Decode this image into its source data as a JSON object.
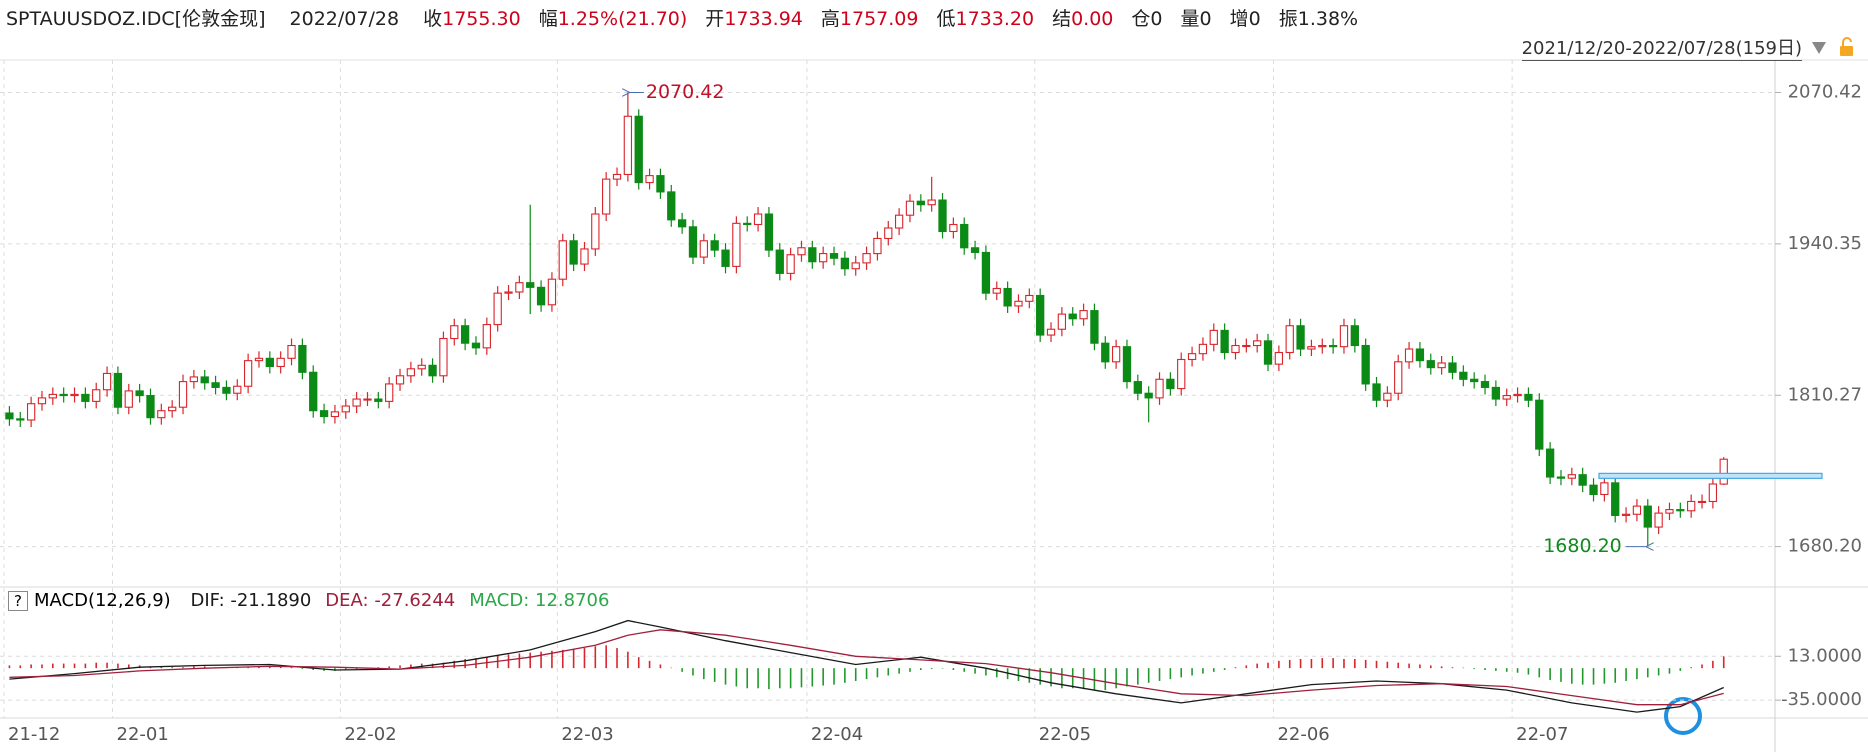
{
  "header": {
    "symbol": "SPTAUUSDOZ.IDC[伦敦金现]",
    "date": "2022/07/28",
    "fields": [
      {
        "label": "收",
        "value": "1755.30",
        "color": "#d0021b"
      },
      {
        "label": "幅",
        "value": "1.25%(21.70)",
        "color": "#d0021b"
      },
      {
        "label": "开",
        "value": "1733.94",
        "color": "#d0021b"
      },
      {
        "label": "高",
        "value": "1757.09",
        "color": "#d0021b"
      },
      {
        "label": "低",
        "value": "1733.20",
        "color": "#d0021b"
      },
      {
        "label": "结",
        "value": "0.00",
        "color": "#d0021b"
      },
      {
        "label": "仓",
        "value": "0",
        "color": "#222222"
      },
      {
        "label": "量",
        "value": "0",
        "color": "#222222"
      },
      {
        "label": "增",
        "value": "0",
        "color": "#222222"
      },
      {
        "label": "振",
        "value": "1.38%",
        "color": "#222222"
      }
    ],
    "range": "2021/12/20-2022/07/28(159日)"
  },
  "chart_data": [
    {
      "type": "candlestick",
      "up_color": "#d9252c",
      "down_color": "#0c8a16",
      "grid": true,
      "ylim": [
        1645.5,
        2088.9
      ],
      "yticks": [
        {
          "value": 1680.2,
          "label": "1680.20"
        },
        1810.27,
        1940.35,
        2070.42
      ],
      "xticks": [
        {
          "value": 0,
          "label": "21-12"
        },
        {
          "value": 10,
          "label": "22-01"
        },
        {
          "value": 31,
          "label": "22-02"
        },
        {
          "value": 51,
          "label": "22-03"
        },
        {
          "value": 74,
          "label": "22-04"
        },
        {
          "value": 95,
          "label": "22-05"
        },
        {
          "value": 117,
          "label": "22-06"
        },
        {
          "value": 139,
          "label": "22-07"
        }
      ],
      "open": [
        1795,
        1790,
        1789,
        1803,
        1808,
        1811,
        1810,
        1811,
        1805,
        1815,
        1829,
        1800,
        1814,
        1810,
        1791,
        1797,
        1800,
        1822,
        1826,
        1821,
        1817,
        1812,
        1818,
        1840,
        1842,
        1835,
        1842,
        1853,
        1830,
        1797,
        1792,
        1796,
        1801,
        1807,
        1807,
        1805,
        1820,
        1827,
        1833,
        1836,
        1827,
        1859,
        1870,
        1855,
        1851,
        1871,
        1898,
        1899,
        1907,
        1903,
        1888,
        1910,
        1943,
        1923,
        1936,
        1966,
        1996,
        2000,
        2050,
        1993,
        1999,
        1985,
        1961,
        1955,
        1929,
        1943,
        1935,
        1921,
        1958,
        1957,
        1966,
        1935,
        1915,
        1931,
        1937,
        1925,
        1932,
        1928,
        1919,
        1924,
        1932,
        1945,
        1954,
        1965,
        1977,
        1974,
        1978,
        1951,
        1957,
        1937,
        1933,
        1898,
        1902,
        1887,
        1891,
        1896,
        1862,
        1867,
        1880,
        1876,
        1883,
        1855,
        1839,
        1852,
        1822,
        1812,
        1808,
        1824,
        1816,
        1841,
        1846,
        1854,
        1866,
        1847,
        1853,
        1853,
        1857,
        1837,
        1847,
        1870,
        1850,
        1852,
        1853,
        1852,
        1870,
        1853,
        1820,
        1806,
        1812,
        1839,
        1850,
        1840,
        1834,
        1838,
        1830,
        1824,
        1822,
        1817,
        1807,
        1810,
        1811,
        1806,
        1764,
        1740,
        1739,
        1742,
        1733,
        1725,
        1735,
        1707,
        1708,
        1715,
        1697,
        1709,
        1712,
        1711,
        1719,
        1719,
        1733.94
      ],
      "high": [
        1801,
        1796,
        1809,
        1814,
        1817,
        1817,
        1817,
        1817,
        1821,
        1835,
        1835,
        1820,
        1820,
        1816,
        1803,
        1806,
        1828,
        1832,
        1832,
        1827,
        1823,
        1824,
        1846,
        1848,
        1848,
        1848,
        1859,
        1859,
        1836,
        1803,
        1802,
        1807,
        1813,
        1813,
        1813,
        1826,
        1833,
        1839,
        1842,
        1842,
        1865,
        1876,
        1876,
        1861,
        1877,
        1904,
        1905,
        1913,
        1974,
        1909,
        1916,
        1949,
        1949,
        1942,
        1972,
        2002,
        2006,
        2070.42,
        2056,
        2005,
        2005,
        1991,
        1967,
        1961,
        1949,
        1949,
        1941,
        1964,
        1964,
        1972,
        1972,
        1941,
        1937,
        1943,
        1943,
        1938,
        1938,
        1934,
        1930,
        1938,
        1951,
        1960,
        1971,
        1983,
        1983,
        1998,
        1984,
        1963,
        1963,
        1943,
        1939,
        1908,
        1908,
        1897,
        1902,
        1902,
        1873,
        1886,
        1886,
        1889,
        1889,
        1861,
        1858,
        1858,
        1828,
        1818,
        1830,
        1830,
        1847,
        1852,
        1860,
        1872,
        1872,
        1859,
        1859,
        1863,
        1863,
        1853,
        1876,
        1876,
        1858,
        1859,
        1859,
        1876,
        1876,
        1859,
        1826,
        1818,
        1845,
        1856,
        1856,
        1846,
        1844,
        1844,
        1836,
        1830,
        1828,
        1823,
        1816,
        1817,
        1817,
        1812,
        1770,
        1746,
        1748,
        1748,
        1739,
        1741,
        1741,
        1714,
        1721,
        1721,
        1715,
        1718,
        1718,
        1725,
        1725,
        1740,
        1757.09
      ],
      "low": [
        1784,
        1783,
        1783,
        1797,
        1802,
        1804,
        1804,
        1799,
        1799,
        1809,
        1794,
        1794,
        1804,
        1785,
        1785,
        1791,
        1794,
        1816,
        1815,
        1811,
        1806,
        1806,
        1812,
        1834,
        1829,
        1829,
        1836,
        1824,
        1791,
        1786,
        1786,
        1790,
        1795,
        1801,
        1799,
        1799,
        1814,
        1821,
        1827,
        1821,
        1821,
        1853,
        1849,
        1845,
        1845,
        1865,
        1892,
        1893,
        1880,
        1882,
        1882,
        1904,
        1917,
        1917,
        1930,
        1960,
        1990,
        1994,
        1987,
        1987,
        1979,
        1955,
        1949,
        1923,
        1923,
        1929,
        1915,
        1915,
        1951,
        1951,
        1929,
        1909,
        1909,
        1925,
        1919,
        1919,
        1922,
        1913,
        1913,
        1918,
        1926,
        1939,
        1948,
        1959,
        1968,
        1968,
        1945,
        1945,
        1931,
        1927,
        1892,
        1892,
        1881,
        1881,
        1885,
        1856,
        1856,
        1861,
        1870,
        1870,
        1849,
        1833,
        1833,
        1816,
        1806,
        1787,
        1802,
        1810,
        1810,
        1835,
        1840,
        1848,
        1841,
        1841,
        1847,
        1847,
        1831,
        1831,
        1841,
        1844,
        1844,
        1846,
        1846,
        1846,
        1847,
        1814,
        1800,
        1800,
        1806,
        1833,
        1834,
        1828,
        1828,
        1824,
        1818,
        1816,
        1811,
        1801,
        1801,
        1804,
        1800,
        1758,
        1734,
        1733,
        1733,
        1727,
        1719,
        1719,
        1701,
        1701,
        1702,
        1680.2,
        1691,
        1703,
        1705,
        1705,
        1713,
        1713,
        1733.2
      ],
      "close": [
        1790,
        1789,
        1803,
        1808,
        1811,
        1810,
        1811,
        1805,
        1815,
        1829,
        1800,
        1814,
        1810,
        1791,
        1797,
        1800,
        1822,
        1826,
        1821,
        1817,
        1812,
        1818,
        1840,
        1842,
        1835,
        1842,
        1853,
        1830,
        1797,
        1792,
        1796,
        1801,
        1807,
        1807,
        1805,
        1820,
        1827,
        1833,
        1836,
        1827,
        1859,
        1870,
        1855,
        1851,
        1871,
        1898,
        1899,
        1907,
        1903,
        1888,
        1910,
        1943,
        1923,
        1936,
        1966,
        1996,
        2000,
        2050,
        1993,
        1999,
        1985,
        1961,
        1955,
        1929,
        1943,
        1935,
        1921,
        1958,
        1957,
        1966,
        1935,
        1915,
        1931,
        1937,
        1925,
        1932,
        1928,
        1919,
        1924,
        1932,
        1945,
        1954,
        1965,
        1977,
        1974,
        1978,
        1951,
        1957,
        1937,
        1933,
        1898,
        1902,
        1887,
        1891,
        1896,
        1862,
        1867,
        1880,
        1876,
        1883,
        1855,
        1839,
        1852,
        1822,
        1812,
        1808,
        1824,
        1816,
        1841,
        1846,
        1854,
        1866,
        1847,
        1853,
        1853,
        1857,
        1837,
        1847,
        1870,
        1850,
        1852,
        1853,
        1852,
        1870,
        1853,
        1820,
        1806,
        1812,
        1839,
        1850,
        1840,
        1834,
        1838,
        1830,
        1824,
        1822,
        1817,
        1807,
        1810,
        1811,
        1806,
        1764,
        1740,
        1739,
        1742,
        1733,
        1725,
        1735,
        1707,
        1708,
        1715,
        1697,
        1709,
        1712,
        1711,
        1719,
        1719,
        1734,
        1755.3
      ],
      "annotations": [
        {
          "value": 2070.42,
          "label": "2070.42",
          "x": 57,
          "side": "right",
          "color": "#c0102a"
        },
        {
          "value": 1680.2,
          "label": "1680.20",
          "x": 151,
          "side": "left",
          "color": "#118a1c"
        }
      ],
      "hline": {
        "value": 1741,
        "x": 147,
        "color": "#4aa8e0"
      }
    },
    {
      "type": "macd",
      "title": "MACD(12,26,9)",
      "help": "?",
      "grid": true,
      "ylim": [
        -54.5,
        63.6
      ],
      "yticks": [
        {
          "value": 13,
          "label": "13.0000"
        },
        {
          "value": -35,
          "label": "-35.0000"
        }
      ],
      "series": [
        {
          "label": "DIF: -21.1890",
          "color": "#1a1a1a",
          "x": [
            0,
            6,
            12,
            18,
            24,
            30,
            36,
            42,
            48,
            54,
            57,
            60,
            66,
            72,
            78,
            84,
            90,
            96,
            102,
            108,
            114,
            120,
            126,
            132,
            138,
            144,
            150,
            154,
            158
          ],
          "values": [
            -12,
            -6,
            1,
            3,
            4,
            -2,
            -1,
            8,
            20,
            40,
            52,
            45,
            30,
            17,
            4,
            12,
            0,
            -16,
            -28,
            -38,
            -28,
            -18,
            -14,
            -17,
            -24,
            -38,
            -48,
            -42,
            -21.189
          ]
        },
        {
          "label": "DEA: -27.6244",
          "color": "#a0203c",
          "x": [
            0,
            6,
            12,
            18,
            24,
            30,
            36,
            42,
            48,
            54,
            57,
            60,
            66,
            72,
            78,
            84,
            90,
            96,
            102,
            108,
            114,
            120,
            126,
            132,
            138,
            144,
            150,
            154,
            158
          ],
          "values": [
            -10,
            -8,
            -3,
            0,
            2,
            1,
            -1,
            3,
            12,
            25,
            36,
            42,
            36,
            25,
            13,
            9,
            5,
            -5,
            -17,
            -28,
            -30,
            -24,
            -19,
            -17,
            -20,
            -30,
            -40,
            -40,
            -27.6244
          ]
        }
      ],
      "histogram": {
        "label": "MACD: 12.8706",
        "label_color": "#2ba84a",
        "up_color": "#d9252c",
        "down_color": "#1f9a2a",
        "values": [
          3,
          3,
          4,
          4,
          5,
          5,
          5,
          5,
          6,
          6,
          5,
          4,
          3,
          2,
          2,
          1,
          1,
          2,
          2,
          1,
          1,
          1,
          1,
          2,
          2,
          2,
          1,
          -1,
          -2,
          -3,
          -3,
          -2,
          -1,
          0.5,
          1,
          2,
          3,
          4,
          5,
          5,
          6,
          8,
          10,
          11,
          12,
          14,
          15,
          16,
          17,
          18,
          19,
          20,
          21,
          22,
          24,
          25,
          22,
          18,
          12,
          8,
          4,
          0.5,
          -4,
          -8,
          -12,
          -15,
          -18,
          -20,
          -22,
          -22,
          -23,
          -22,
          -22,
          -21,
          -20,
          -19,
          -18,
          -16,
          -14,
          -12,
          -10,
          -8,
          -6,
          -4,
          -2,
          -1,
          -0.5,
          -2,
          -4,
          -6,
          -8,
          -10,
          -12,
          -14,
          -16,
          -18,
          -20,
          -22,
          -22,
          -23,
          -24,
          -24,
          -22,
          -20,
          -18,
          -16,
          -14,
          -12,
          -10,
          -8,
          -6,
          -4,
          -2,
          1,
          3,
          5,
          6,
          8,
          9,
          10,
          10,
          11,
          11,
          10,
          10,
          9,
          8,
          7,
          6,
          5,
          4,
          3,
          2,
          1,
          0.5,
          -1,
          -2,
          -3,
          -4,
          -5,
          -7,
          -10,
          -13,
          -15,
          -17,
          -18,
          -18,
          -17,
          -16,
          -14,
          -12,
          -10,
          -8,
          -6,
          -3,
          1,
          4,
          8,
          12.8706
        ]
      }
    }
  ]
}
